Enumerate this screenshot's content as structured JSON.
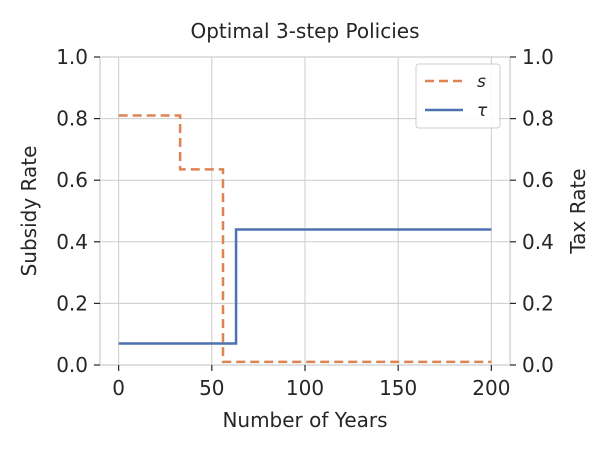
{
  "chart_data": {
    "type": "line",
    "title": "Optimal 3-step Policies",
    "xlabel": "Number of Years",
    "ylabel_left": "Subsidy Rate",
    "ylabel_right": "Tax Rate",
    "xlim": [
      -10,
      210
    ],
    "ylim": [
      0,
      1.0
    ],
    "ylim_right": [
      0,
      1.0
    ],
    "x_ticks": [
      0,
      50,
      100,
      150,
      200
    ],
    "y_ticks": [
      0.0,
      0.2,
      0.4,
      0.6,
      0.8,
      1.0
    ],
    "y_ticks_right": [
      0.0,
      0.2,
      0.4,
      0.6,
      0.8,
      1.0
    ],
    "grid": true,
    "legend_position": "top-right",
    "series": [
      {
        "name": "s",
        "axis": "left",
        "style": "dashed",
        "color": "#dd8452",
        "points": [
          [
            0,
            0.81
          ],
          [
            33,
            0.81
          ],
          [
            33,
            0.635
          ],
          [
            56,
            0.635
          ],
          [
            56,
            0.01
          ],
          [
            200,
            0.01
          ]
        ]
      },
      {
        "name": "τ",
        "axis": "right",
        "style": "solid",
        "color": "#4c72b0",
        "points": [
          [
            0,
            0.07
          ],
          [
            63,
            0.07
          ],
          [
            63,
            0.44
          ],
          [
            200,
            0.44
          ]
        ]
      }
    ]
  }
}
